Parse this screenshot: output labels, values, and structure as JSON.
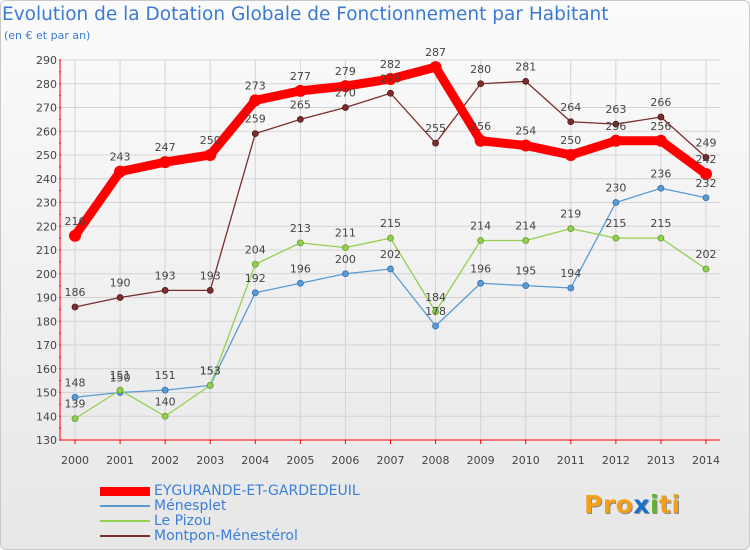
{
  "page": {
    "title": "Evolution de la Dotation Globale de Fonctionnement par Habitant",
    "subtitle": "(en € et par an)"
  },
  "logo": {
    "text": "Proxiti",
    "colors": {
      "main": "#f2a01a",
      "x": "#1a6fc9",
      "i": "#63b22d"
    }
  },
  "chart_data": {
    "type": "line",
    "title": "Evolution de la Dotation Globale de Fonctionnement par Habitant",
    "subtitle": "(en € et par an)",
    "xlabel": "",
    "ylabel": "",
    "x": [
      "2000",
      "2001",
      "2002",
      "2003",
      "2004",
      "2005",
      "2006",
      "2007",
      "2008",
      "2009",
      "2010",
      "2011",
      "2012",
      "2013",
      "2014"
    ],
    "ylim": [
      130,
      290
    ],
    "yticks": [
      130,
      140,
      150,
      160,
      170,
      180,
      190,
      200,
      210,
      220,
      230,
      240,
      250,
      260,
      270,
      280,
      290
    ],
    "grid": true,
    "legend_position": "bottom-left",
    "series": [
      {
        "name": "EYGURANDE-ET-GARDEDEUIL",
        "color": "#ff0000",
        "emphasis": true,
        "values": [
          216,
          243,
          247,
          250,
          273,
          277,
          279,
          282,
          287,
          256,
          254,
          250,
          256,
          256,
          242
        ]
      },
      {
        "name": "Ménesplet",
        "color": "#5b9bd5",
        "emphasis": false,
        "values": [
          148,
          150,
          151,
          153,
          192,
          196,
          200,
          202,
          178,
          196,
          195,
          194,
          230,
          236,
          232
        ]
      },
      {
        "name": "Le Pizou",
        "color": "#92d050",
        "emphasis": false,
        "values": [
          139,
          151,
          140,
          153,
          204,
          213,
          211,
          215,
          184,
          214,
          214,
          219,
          215,
          215,
          202
        ]
      },
      {
        "name": "Montpon-Ménestérol",
        "color": "#7b2e2e",
        "emphasis": false,
        "values": [
          186,
          190,
          193,
          193,
          259,
          265,
          270,
          276,
          255,
          280,
          281,
          264,
          263,
          266,
          249
        ]
      }
    ]
  }
}
